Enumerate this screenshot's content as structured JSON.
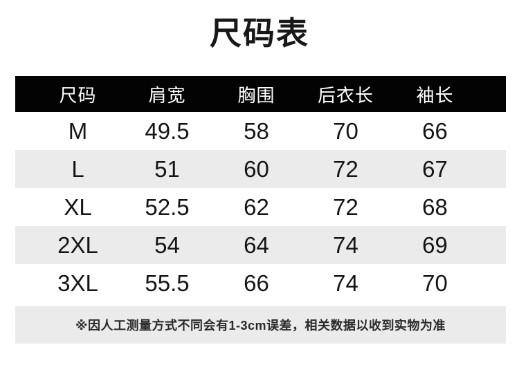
{
  "page_title": "尺码表",
  "table": {
    "columns": [
      "尺码",
      "肩宽",
      "胸围",
      "后衣长",
      "袖长"
    ],
    "rows": [
      {
        "size": "M",
        "values": [
          "49.5",
          "58",
          "70",
          "66"
        ]
      },
      {
        "size": "L",
        "values": [
          "51",
          "60",
          "72",
          "67"
        ]
      },
      {
        "size": "XL",
        "values": [
          "52.5",
          "62",
          "72",
          "68"
        ]
      },
      {
        "size": "2XL",
        "values": [
          "54",
          "64",
          "74",
          "69"
        ]
      },
      {
        "size": "3XL",
        "values": [
          "55.5",
          "66",
          "74",
          "70"
        ]
      }
    ]
  },
  "note": "※因人工测量方式不同会有1-3cm误差，相关数据以收到实物为准",
  "colors": {
    "header_bg": "#030303",
    "header_text": "#ffffff",
    "alt_row_bg": "#ebebeb",
    "note_bg": "#ebebeb",
    "body_text": "#151515"
  },
  "chart_data": {
    "type": "table",
    "title": "尺码表",
    "columns": [
      "尺码",
      "肩宽",
      "胸围",
      "后衣长",
      "袖长"
    ],
    "rows": [
      [
        "M",
        49.5,
        58,
        70,
        66
      ],
      [
        "L",
        51,
        60,
        72,
        67
      ],
      [
        "XL",
        52.5,
        62,
        72,
        68
      ],
      [
        "2XL",
        54,
        64,
        74,
        69
      ],
      [
        "3XL",
        55.5,
        66,
        74,
        70
      ]
    ],
    "footnote": "※因人工测量方式不同会有1-3cm误差，相关数据以收到实物为准",
    "layout": {
      "header_style": "black-bar-white-text",
      "row_striping": "white/light-gray alternating",
      "units": "cm"
    }
  }
}
